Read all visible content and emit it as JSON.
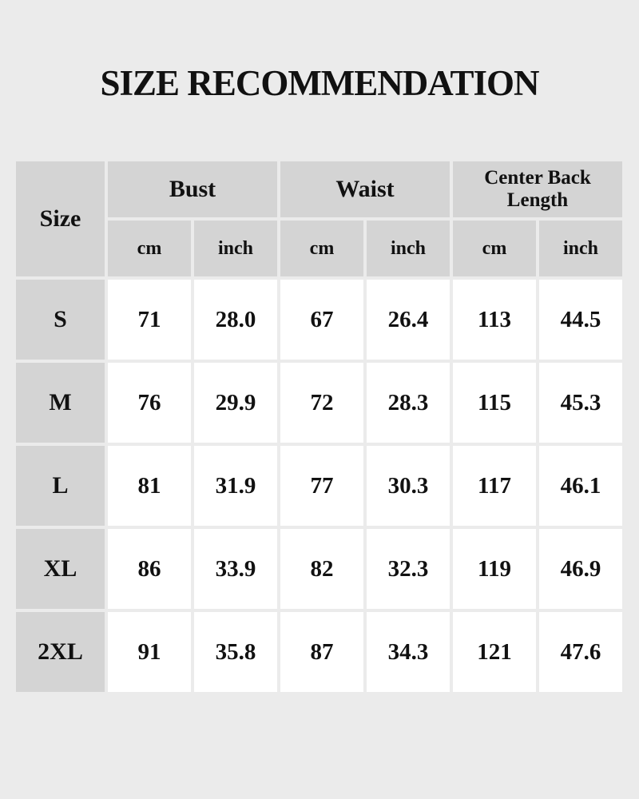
{
  "title": "SIZE RECOMMENDATION",
  "table": {
    "size_header": "Size",
    "groups": [
      "Bust",
      "Waist",
      "Center Back Length"
    ],
    "units": [
      "cm",
      "inch",
      "cm",
      "inch",
      "cm",
      "inch"
    ],
    "rows": [
      {
        "size": "S",
        "values": [
          "71",
          "28.0",
          "67",
          "26.4",
          "113",
          "44.5"
        ]
      },
      {
        "size": "M",
        "values": [
          "76",
          "29.9",
          "72",
          "28.3",
          "115",
          "45.3"
        ]
      },
      {
        "size": "L",
        "values": [
          "81",
          "31.9",
          "77",
          "30.3",
          "117",
          "46.1"
        ]
      },
      {
        "size": "XL",
        "values": [
          "86",
          "33.9",
          "82",
          "32.3",
          "119",
          "46.9"
        ]
      },
      {
        "size": "2XL",
        "values": [
          "91",
          "35.8",
          "87",
          "34.3",
          "121",
          "47.6"
        ]
      }
    ]
  },
  "colors": {
    "background": "#ebebeb",
    "header": "#d4d4d4",
    "cell": "#ffffff",
    "text": "#111111"
  }
}
